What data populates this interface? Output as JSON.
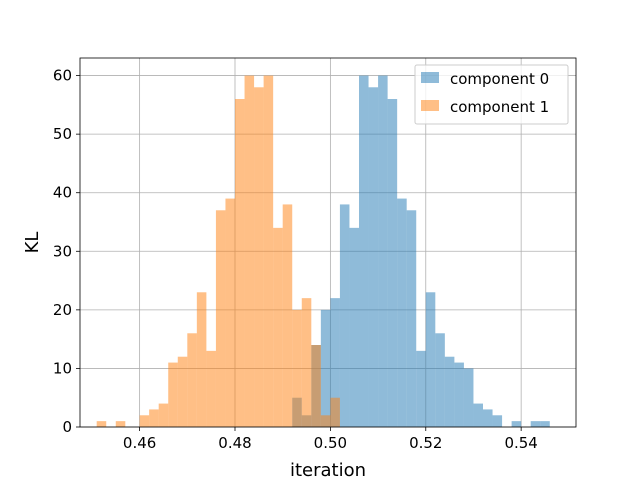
{
  "chart_data": {
    "type": "histogram",
    "xlabel": "iteration",
    "ylabel": "KL",
    "xlim": [
      0.4475,
      0.5515
    ],
    "ylim": [
      0,
      63
    ],
    "x_ticks": [
      0.46,
      0.48,
      0.5,
      0.52,
      0.54
    ],
    "x_tick_labels": [
      "0.46",
      "0.48",
      "0.50",
      "0.52",
      "0.54"
    ],
    "y_ticks": [
      0,
      10,
      20,
      30,
      40,
      50,
      60
    ],
    "y_tick_labels": [
      "0",
      "10",
      "20",
      "30",
      "40",
      "50",
      "60"
    ],
    "grid": true,
    "legend_position": "upper right",
    "bin_width": 0.002,
    "series": [
      {
        "name": "component 0",
        "color": "#1f77b4",
        "bins": [
          {
            "x0": 0.492,
            "count": 5
          },
          {
            "x0": 0.494,
            "count": 2
          },
          {
            "x0": 0.496,
            "count": 14
          },
          {
            "x0": 0.498,
            "count": 20
          },
          {
            "x0": 0.5,
            "count": 22
          },
          {
            "x0": 0.502,
            "count": 38
          },
          {
            "x0": 0.504,
            "count": 34
          },
          {
            "x0": 0.506,
            "count": 60
          },
          {
            "x0": 0.508,
            "count": 58
          },
          {
            "x0": 0.51,
            "count": 60
          },
          {
            "x0": 0.512,
            "count": 56
          },
          {
            "x0": 0.514,
            "count": 39
          },
          {
            "x0": 0.516,
            "count": 37
          },
          {
            "x0": 0.518,
            "count": 13
          },
          {
            "x0": 0.52,
            "count": 23
          },
          {
            "x0": 0.522,
            "count": 16
          },
          {
            "x0": 0.524,
            "count": 12
          },
          {
            "x0": 0.526,
            "count": 11
          },
          {
            "x0": 0.528,
            "count": 10
          },
          {
            "x0": 0.53,
            "count": 4
          },
          {
            "x0": 0.532,
            "count": 3
          },
          {
            "x0": 0.534,
            "count": 2
          },
          {
            "x0": 0.538,
            "count": 1
          },
          {
            "x0": 0.542,
            "count": 1
          },
          {
            "x0": 0.544,
            "count": 1
          }
        ]
      },
      {
        "name": "component 1",
        "color": "#ff7f0e",
        "bins": [
          {
            "x0": 0.451,
            "count": 1
          },
          {
            "x0": 0.455,
            "count": 1
          },
          {
            "x0": 0.46,
            "count": 2
          },
          {
            "x0": 0.462,
            "count": 3
          },
          {
            "x0": 0.464,
            "count": 4
          },
          {
            "x0": 0.466,
            "count": 11
          },
          {
            "x0": 0.468,
            "count": 12
          },
          {
            "x0": 0.47,
            "count": 16
          },
          {
            "x0": 0.472,
            "count": 23
          },
          {
            "x0": 0.474,
            "count": 13
          },
          {
            "x0": 0.476,
            "count": 37
          },
          {
            "x0": 0.478,
            "count": 39
          },
          {
            "x0": 0.48,
            "count": 56
          },
          {
            "x0": 0.482,
            "count": 60
          },
          {
            "x0": 0.484,
            "count": 58
          },
          {
            "x0": 0.486,
            "count": 60
          },
          {
            "x0": 0.488,
            "count": 34
          },
          {
            "x0": 0.49,
            "count": 38
          },
          {
            "x0": 0.492,
            "count": 20
          },
          {
            "x0": 0.494,
            "count": 22
          },
          {
            "x0": 0.496,
            "count": 14
          },
          {
            "x0": 0.498,
            "count": 2
          },
          {
            "x0": 0.5,
            "count": 5
          }
        ]
      }
    ]
  }
}
